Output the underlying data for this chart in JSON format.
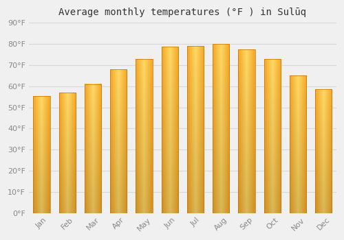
{
  "title": "Average monthly temperatures (°F ) in Sulūq",
  "months": [
    "Jan",
    "Feb",
    "Mar",
    "Apr",
    "May",
    "Jun",
    "Jul",
    "Aug",
    "Sep",
    "Oct",
    "Nov",
    "Dec"
  ],
  "values": [
    55.4,
    57.0,
    61.0,
    68.0,
    73.0,
    78.8,
    79.0,
    80.0,
    77.5,
    73.0,
    65.0,
    58.5
  ],
  "bar_color_left": "#F5A623",
  "bar_color_center": "#FFD966",
  "bar_color_right": "#F5A623",
  "bar_outline_color": "#C87000",
  "ylim": [
    0,
    90
  ],
  "yticks": [
    0,
    10,
    20,
    30,
    40,
    50,
    60,
    70,
    80,
    90
  ],
  "background_color": "#f0f0f0",
  "grid_color": "#d8d8d8",
  "title_fontsize": 10,
  "tick_fontsize": 8,
  "bar_width": 0.65
}
